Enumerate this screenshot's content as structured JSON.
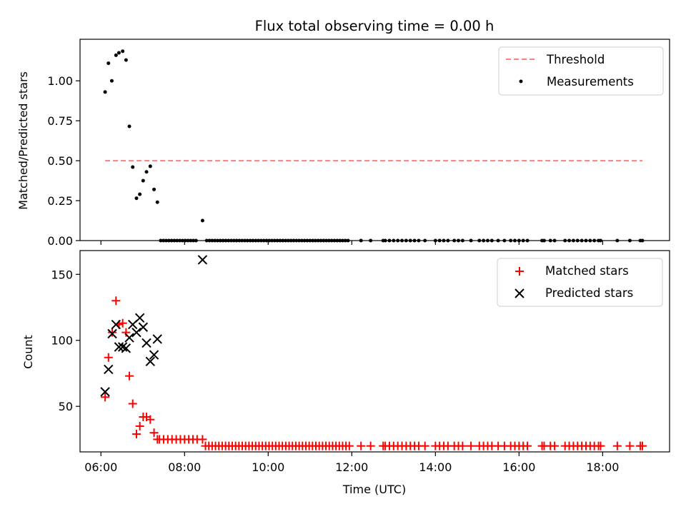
{
  "chart_data": [
    {
      "type": "scatter",
      "title": "Flux total observing time = 0.00 h",
      "xlabel": "",
      "ylabel": "Matched/Predicted stars",
      "xlim": [
        5.5,
        19.6
      ],
      "ylim": [
        0,
        1.26
      ],
      "xticks": [
        6,
        8,
        10,
        12,
        14,
        16,
        18
      ],
      "yticks": [
        0.0,
        0.25,
        0.5,
        0.75,
        1.0
      ],
      "ytick_labels": [
        "0.00",
        "0.25",
        "0.50",
        "0.75",
        "1.00"
      ],
      "legend": "top-right",
      "threshold": {
        "name": "Threshold",
        "y": 0.5,
        "x": [
          6.1,
          18.95
        ],
        "color": "#ff7f7f",
        "style": "dashed"
      },
      "series": [
        {
          "name": "Measurements",
          "color": "#000000",
          "marker": "dot",
          "points": [
            [
              6.1,
              0.93
            ],
            [
              6.18,
              1.11
            ],
            [
              6.26,
              1.0
            ],
            [
              6.36,
              1.16
            ],
            [
              6.43,
              1.175
            ],
            [
              6.52,
              1.185
            ],
            [
              6.6,
              1.13
            ],
            [
              6.68,
              0.715
            ],
            [
              6.76,
              0.46
            ],
            [
              6.85,
              0.265
            ],
            [
              6.93,
              0.29
            ],
            [
              7.01,
              0.375
            ],
            [
              7.09,
              0.43
            ],
            [
              7.18,
              0.465
            ],
            [
              7.27,
              0.32
            ],
            [
              7.35,
              0.24
            ],
            [
              8.43,
              0.125
            ]
          ],
          "zero_runs": [
            [
              7.43,
              8.33,
              0.065
            ],
            [
              8.53,
              11.95,
              0.065
            ]
          ],
          "zero_points": [
            12.22,
            12.45,
            12.75,
            12.8,
            12.9,
            13.0,
            13.1,
            13.2,
            13.3,
            13.4,
            13.5,
            13.6,
            13.75,
            14.0,
            14.1,
            14.2,
            14.3,
            14.45,
            14.55,
            14.65,
            14.85,
            15.05,
            15.15,
            15.25,
            15.35,
            15.5,
            15.65,
            15.8,
            15.9,
            16.0,
            16.1,
            16.2,
            16.55,
            16.6,
            16.75,
            16.85,
            17.1,
            17.2,
            17.3,
            17.4,
            17.5,
            17.6,
            17.7,
            17.8,
            17.9,
            17.95,
            18.35,
            18.65,
            18.9,
            18.95
          ]
        }
      ]
    },
    {
      "type": "scatter",
      "title": "",
      "xlabel": "Time (UTC)",
      "ylabel": "Count",
      "xlim": [
        5.5,
        19.6
      ],
      "ylim": [
        15.5,
        168
      ],
      "xticks": [
        6,
        8,
        10,
        12,
        14,
        16,
        18
      ],
      "xtick_labels": [
        "06:00",
        "08:00",
        "10:00",
        "12:00",
        "14:00",
        "16:00",
        "18:00"
      ],
      "yticks": [
        50,
        100,
        150
      ],
      "legend": "top-right",
      "series": [
        {
          "name": "Matched stars",
          "color": "#ff0000",
          "marker": "plus",
          "points": [
            [
              6.1,
              57
            ],
            [
              6.18,
              87
            ],
            [
              6.27,
              106
            ],
            [
              6.36,
              130
            ],
            [
              6.43,
              112
            ],
            [
              6.52,
              113
            ],
            [
              6.6,
              106
            ],
            [
              6.68,
              73
            ],
            [
              6.76,
              52
            ],
            [
              6.85,
              29
            ],
            [
              6.93,
              35
            ],
            [
              7.01,
              42
            ],
            [
              7.09,
              42
            ],
            [
              7.18,
              40
            ],
            [
              7.27,
              30
            ],
            [
              7.35,
              25
            ],
            [
              8.43,
              25
            ]
          ],
          "flat_runs": [
            [
              7.4,
              8.35,
              25,
              0.1
            ],
            [
              8.5,
              11.95,
              20,
              0.08
            ]
          ],
          "flat_points_y": 20,
          "flat_points": [
            12.22,
            12.45,
            12.75,
            12.8,
            12.9,
            13.0,
            13.1,
            13.2,
            13.3,
            13.4,
            13.5,
            13.6,
            13.75,
            14.0,
            14.1,
            14.2,
            14.3,
            14.45,
            14.55,
            14.65,
            14.85,
            15.05,
            15.15,
            15.25,
            15.35,
            15.5,
            15.65,
            15.8,
            15.9,
            16.0,
            16.1,
            16.2,
            16.55,
            16.6,
            16.75,
            16.85,
            17.1,
            17.2,
            17.3,
            17.4,
            17.5,
            17.6,
            17.7,
            17.8,
            17.9,
            17.95,
            18.35,
            18.65,
            18.9,
            18.95
          ]
        },
        {
          "name": "Predicted stars",
          "color": "#000000",
          "marker": "x",
          "points": [
            [
              6.1,
              61
            ],
            [
              6.18,
              78
            ],
            [
              6.27,
              105
            ],
            [
              6.36,
              112
            ],
            [
              6.43,
              95
            ],
            [
              6.52,
              95
            ],
            [
              6.6,
              94
            ],
            [
              6.68,
              102
            ],
            [
              6.76,
              112
            ],
            [
              6.85,
              106
            ],
            [
              6.93,
              117
            ],
            [
              7.01,
              110
            ],
            [
              7.09,
              98
            ],
            [
              7.18,
              84
            ],
            [
              7.27,
              89
            ],
            [
              7.35,
              101
            ],
            [
              8.43,
              161
            ]
          ]
        }
      ]
    }
  ]
}
